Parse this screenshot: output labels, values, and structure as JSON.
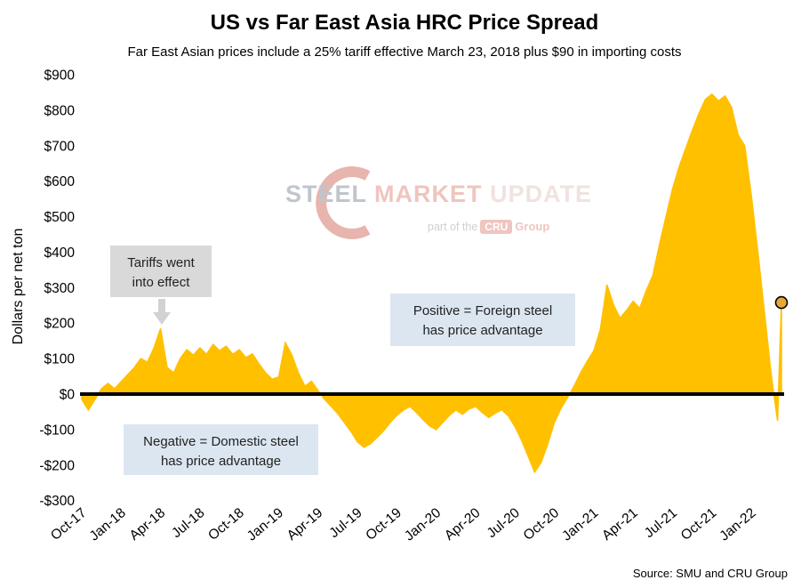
{
  "chart_data": {
    "type": "area",
    "title": "US vs Far East Asia HRC Price Spread",
    "subtitle": "Far East Asian prices include a 25% tariff effective March 23, 2018 plus $90 in importing costs",
    "ylabel": "Dollars per net ton",
    "source": "Source: SMU and CRU Group",
    "x_tick_labels": [
      "Oct-17",
      "Jan-18",
      "Apr-18",
      "Jul-18",
      "Oct-18",
      "Jan-19",
      "Apr-19",
      "Jul-19",
      "Oct-19",
      "Jan-20",
      "Apr-20",
      "Jul-20",
      "Oct-20",
      "Jan-21",
      "Apr-21",
      "Jul-21",
      "Oct-21",
      "Jan-22"
    ],
    "x_tick_month_index": [
      0,
      3,
      6,
      9,
      12,
      15,
      18,
      21,
      24,
      27,
      30,
      33,
      36,
      39,
      42,
      45,
      48,
      51
    ],
    "x_step_months": 0.5,
    "x_max_months": 53.5,
    "ylim": [
      -300,
      900
    ],
    "y_tick_values": [
      900,
      800,
      700,
      600,
      500,
      400,
      300,
      200,
      100,
      0,
      -100,
      -200,
      -300
    ],
    "y_tick_labels": [
      "$900",
      "$800",
      "$700",
      "$600",
      "$500",
      "$400",
      "$300",
      "$200",
      "$100",
      "$0",
      "-$100",
      "-$200",
      "-$300"
    ],
    "values": [
      -15,
      -45,
      -15,
      15,
      30,
      15,
      35,
      55,
      75,
      100,
      90,
      130,
      185,
      75,
      60,
      100,
      125,
      110,
      130,
      112,
      140,
      122,
      135,
      112,
      125,
      103,
      113,
      85,
      60,
      42,
      48,
      145,
      110,
      60,
      22,
      36,
      10,
      -15,
      -35,
      -55,
      -80,
      -105,
      -135,
      -150,
      -140,
      -122,
      -103,
      -80,
      -60,
      -45,
      -35,
      -52,
      -72,
      -90,
      -100,
      -80,
      -60,
      -45,
      -57,
      -42,
      -35,
      -52,
      -66,
      -54,
      -44,
      -62,
      -92,
      -130,
      -175,
      -220,
      -192,
      -140,
      -80,
      -40,
      -10,
      22,
      60,
      92,
      122,
      182,
      308,
      252,
      214,
      236,
      262,
      242,
      292,
      334,
      420,
      500,
      578,
      640,
      692,
      742,
      790,
      830,
      845,
      826,
      840,
      808,
      730,
      700,
      560,
      400,
      230,
      60,
      -75
    ],
    "final_point": {
      "x_month": 53.3,
      "value": 258
    },
    "colors": {
      "area": "#FFC000",
      "zero_line": "#000000",
      "marker_fill": "#E8A838",
      "marker_stroke": "#000000",
      "annotation_gray_bg": "#D9D9D9",
      "annotation_blue_bg": "#DCE6F1"
    },
    "grid": "off",
    "legend": "none",
    "annotations": {
      "tariffs": {
        "line1": "Tariffs went",
        "line2": "into effect"
      },
      "positive": {
        "line1": "Positive = Foreign steel",
        "line2": "has price advantage"
      },
      "negative": {
        "line1": "Negative = Domestic steel",
        "line2": "has price advantage"
      }
    }
  },
  "watermark": {
    "steel": "STEEL",
    "market": "MARKET",
    "update": "UPDATE",
    "part_of": "part of the",
    "cru": "CRU",
    "group": "Group"
  }
}
